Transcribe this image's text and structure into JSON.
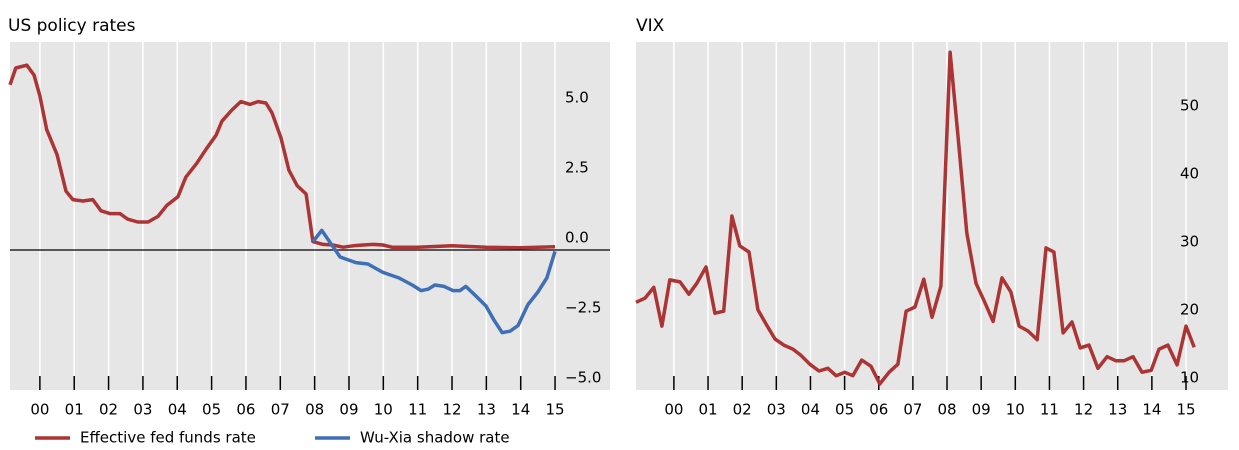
{
  "chart_data": [
    {
      "type": "line",
      "title": "US policy rates",
      "series": [
        {
          "name": "Effective fed funds rate",
          "color": "#ac3434",
          "x": [
            1999.13,
            1999.3,
            1999.62,
            1999.83,
            2000.0,
            2000.2,
            2000.5,
            2000.76,
            2000.96,
            2001.25,
            2001.54,
            2001.78,
            2002.04,
            2002.33,
            2002.56,
            2002.85,
            2003.15,
            2003.44,
            2003.7,
            2004.02,
            2004.25,
            2004.57,
            2004.84,
            2005.13,
            2005.3,
            2005.59,
            2005.85,
            2006.12,
            2006.35,
            2006.58,
            2006.76,
            2007.02,
            2007.25,
            2007.49,
            2007.75,
            2007.95,
            2008.24,
            2008.53,
            2008.83,
            2009.12,
            2009.41,
            2009.7,
            2009.99,
            2010.25,
            2011.0,
            2012.0,
            2013.0,
            2014.0,
            2015.0
          ],
          "values": [
            5.9,
            6.5,
            6.6,
            6.25,
            5.5,
            4.3,
            3.4,
            2.1,
            1.8,
            1.75,
            1.8,
            1.4,
            1.3,
            1.3,
            1.1,
            1.0,
            1.0,
            1.2,
            1.6,
            1.9,
            2.6,
            3.1,
            3.6,
            4.1,
            4.6,
            5.0,
            5.3,
            5.2,
            5.3,
            5.25,
            4.9,
            4.0,
            2.85,
            2.3,
            2.0,
            0.3,
            0.2,
            0.18,
            0.1,
            0.15,
            0.18,
            0.2,
            0.18,
            0.1,
            0.1,
            0.15,
            0.1,
            0.08,
            0.12
          ]
        },
        {
          "name": "Wu-Xia shadow rate",
          "color": "#3f6fb5",
          "x": [
            2007.95,
            2008.21,
            2008.74,
            2009.2,
            2009.55,
            2009.99,
            2010.46,
            2010.84,
            2011.1,
            2011.3,
            2011.5,
            2011.77,
            2012.03,
            2012.23,
            2012.4,
            2012.7,
            2012.99,
            2013.22,
            2013.46,
            2013.69,
            2013.92,
            2014.21,
            2014.5,
            2014.76,
            2015.0
          ],
          "values": [
            0.3,
            0.7,
            -0.25,
            -0.45,
            -0.5,
            -0.8,
            -1.0,
            -1.25,
            -1.45,
            -1.4,
            -1.25,
            -1.3,
            -1.45,
            -1.45,
            -1.3,
            -1.65,
            -2.0,
            -2.5,
            -2.95,
            -2.9,
            -2.7,
            -1.95,
            -1.5,
            -1.0,
            -0.05
          ]
        }
      ],
      "xlim": [
        1999.13,
        2016.6
      ],
      "xticks": [
        {
          "value": 2000,
          "label": "00"
        },
        {
          "value": 2001,
          "label": "01"
        },
        {
          "value": 2002,
          "label": "02"
        },
        {
          "value": 2003,
          "label": "03"
        },
        {
          "value": 2004,
          "label": "04"
        },
        {
          "value": 2005,
          "label": "05"
        },
        {
          "value": 2006,
          "label": "06"
        },
        {
          "value": 2007,
          "label": "07"
        },
        {
          "value": 2008,
          "label": "08"
        },
        {
          "value": 2009,
          "label": "09"
        },
        {
          "value": 2010,
          "label": "10"
        },
        {
          "value": 2011,
          "label": "11"
        },
        {
          "value": 2012,
          "label": "12"
        },
        {
          "value": 2013,
          "label": "13"
        },
        {
          "value": 2014,
          "label": "14"
        },
        {
          "value": 2015,
          "label": "15"
        }
      ],
      "ylim": [
        -5,
        7.43
      ],
      "yticks": [
        {
          "value": 5,
          "label": "5.0"
        },
        {
          "value": 2.5,
          "label": "2.5"
        },
        {
          "value": 0,
          "label": "0.0"
        },
        {
          "value": -2.5,
          "label": "−2.5"
        },
        {
          "value": -5,
          "label": "−5.0"
        }
      ],
      "zero_line": true,
      "grid": true,
      "legend": "bottom"
    },
    {
      "type": "line",
      "title": "VIX",
      "series": [
        {
          "color": "#ac3434",
          "x": [
            1998.89,
            1999.15,
            1999.41,
            1999.65,
            1999.88,
            2000.18,
            2000.44,
            2000.67,
            2000.94,
            2001.2,
            2001.46,
            2001.7,
            2001.93,
            2002.2,
            2002.46,
            2002.7,
            2002.96,
            2003.22,
            2003.49,
            2003.72,
            2003.98,
            2004.25,
            2004.51,
            2004.75,
            2005.01,
            2005.24,
            2005.5,
            2005.77,
            2006.03,
            2006.3,
            2006.56,
            2006.8,
            2007.06,
            2007.32,
            2007.56,
            2007.82,
            2008.09,
            2008.32,
            2008.58,
            2008.85,
            2009.08,
            2009.35,
            2009.61,
            2009.87,
            2010.11,
            2010.37,
            2010.64,
            2010.9,
            2011.13,
            2011.4,
            2011.66,
            2011.9,
            2012.16,
            2012.42,
            2012.69,
            2012.95,
            2013.18,
            2013.45,
            2013.71,
            2013.98,
            2014.21,
            2014.47,
            2014.74,
            2015.0,
            2015.24
          ],
          "values": [
            22.9,
            23.5,
            25.1,
            19.4,
            26.2,
            25.9,
            24.1,
            25.7,
            28.1,
            21.3,
            21.6,
            35.6,
            31.2,
            30.3,
            21.8,
            19.7,
            17.5,
            16.6,
            16.0,
            15.1,
            13.8,
            12.8,
            13.2,
            12.1,
            12.6,
            12.1,
            14.4,
            13.5,
            10.9,
            12.6,
            13.8,
            21.6,
            22.2,
            26.3,
            20.7,
            25.3,
            59.7,
            47.5,
            33.1,
            25.7,
            23.2,
            20.1,
            26.5,
            24.4,
            19.4,
            18.7,
            17.4,
            30.9,
            30.3,
            18.4,
            20.0,
            16.2,
            16.6,
            13.2,
            14.9,
            14.3,
            14.3,
            14.9,
            12.6,
            12.9,
            16.0,
            16.6,
            13.7,
            19.4,
            16.3
          ]
        }
      ],
      "xlim": [
        1998.89,
        2016.23
      ],
      "xticks": [
        {
          "value": 2000,
          "label": "00"
        },
        {
          "value": 2001,
          "label": "01"
        },
        {
          "value": 2002,
          "label": "02"
        },
        {
          "value": 2003,
          "label": "03"
        },
        {
          "value": 2004,
          "label": "04"
        },
        {
          "value": 2005,
          "label": "05"
        },
        {
          "value": 2006,
          "label": "06"
        },
        {
          "value": 2007,
          "label": "07"
        },
        {
          "value": 2008,
          "label": "08"
        },
        {
          "value": 2009,
          "label": "09"
        },
        {
          "value": 2010,
          "label": "10"
        },
        {
          "value": 2011,
          "label": "11"
        },
        {
          "value": 2012,
          "label": "12"
        },
        {
          "value": 2013,
          "label": "13"
        },
        {
          "value": 2014,
          "label": "14"
        },
        {
          "value": 2015,
          "label": "15"
        }
      ],
      "ylim": [
        10,
        61.2
      ],
      "yticks": [
        50,
        40,
        30,
        20,
        10
      ],
      "zero_line": false,
      "grid": true
    }
  ]
}
